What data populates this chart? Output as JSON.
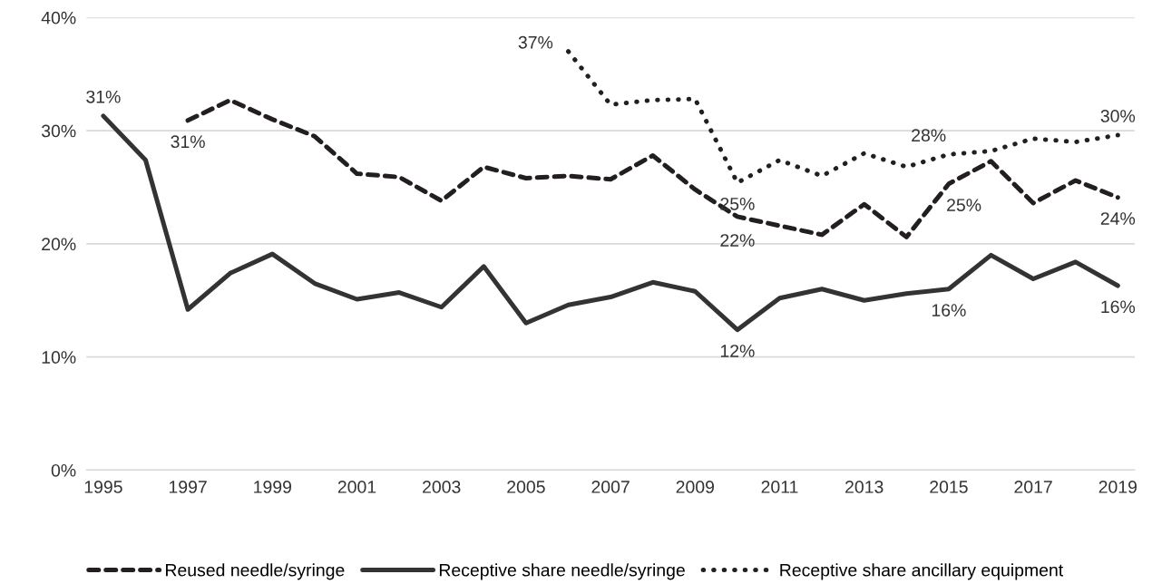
{
  "chart_data": {
    "type": "line",
    "x": [
      1995,
      1996,
      1997,
      1998,
      1999,
      2000,
      2001,
      2002,
      2003,
      2004,
      2005,
      2006,
      2007,
      2008,
      2009,
      2010,
      2011,
      2012,
      2013,
      2014,
      2015,
      2016,
      2017,
      2018,
      2019
    ],
    "series": [
      {
        "name": "Reused needle/syringe",
        "color": "#231f20",
        "line_style": "dashed",
        "values": [
          null,
          null,
          30.9,
          32.7,
          31.0,
          29.5,
          26.2,
          25.9,
          23.8,
          26.8,
          25.8,
          26.0,
          25.7,
          27.8,
          24.8,
          22.4,
          21.6,
          20.8,
          23.5,
          20.6,
          25.3,
          27.3,
          23.6,
          25.6,
          24.1
        ],
        "value_labels": [
          null,
          null,
          "31%",
          null,
          null,
          null,
          null,
          null,
          null,
          null,
          null,
          null,
          null,
          null,
          null,
          "22%",
          null,
          null,
          null,
          null,
          "25%",
          null,
          null,
          null,
          "24%"
        ]
      },
      {
        "name": "Receptive share needle/syringe",
        "color": "#333333",
        "line_style": "solid",
        "values": [
          31.3,
          27.4,
          14.2,
          17.4,
          19.1,
          16.5,
          15.1,
          15.7,
          14.4,
          18.0,
          13.0,
          14.6,
          15.3,
          16.6,
          15.8,
          12.4,
          15.2,
          16.0,
          15.0,
          15.6,
          16.0,
          19.0,
          16.9,
          18.4,
          16.3
        ],
        "value_labels": [
          "31%",
          null,
          null,
          null,
          null,
          null,
          null,
          null,
          null,
          null,
          null,
          null,
          null,
          null,
          null,
          "12%",
          null,
          null,
          null,
          null,
          "16%",
          null,
          null,
          null,
          "16%"
        ]
      },
      {
        "name": "Receptive share ancillary equipment",
        "color": "#231f20",
        "line_style": "dotted",
        "values": [
          null,
          null,
          null,
          null,
          null,
          null,
          null,
          null,
          null,
          null,
          null,
          37.0,
          32.3,
          32.7,
          32.8,
          25.4,
          27.4,
          26.0,
          28.0,
          26.8,
          27.9,
          28.2,
          29.3,
          29.0,
          29.6
        ],
        "value_labels": [
          null,
          null,
          null,
          null,
          null,
          null,
          null,
          null,
          null,
          null,
          null,
          "37%",
          null,
          null,
          null,
          "25%",
          null,
          null,
          null,
          null,
          "28%",
          null,
          null,
          null,
          "30%"
        ]
      }
    ],
    "xlim": [
      1994.6,
      2019.4
    ],
    "xticks": [
      1995,
      1997,
      1999,
      2001,
      2003,
      2005,
      2007,
      2009,
      2011,
      2013,
      2015,
      2017,
      2019
    ],
    "ylim": [
      0,
      40
    ],
    "yticks": [
      {
        "value": 0,
        "label": "0%"
      },
      {
        "value": 10,
        "label": "10%"
      },
      {
        "value": 20,
        "label": "20%"
      },
      {
        "value": 30,
        "label": "30%"
      },
      {
        "value": 40,
        "label": "40%"
      }
    ],
    "grid": "y",
    "legend": "bottom"
  }
}
